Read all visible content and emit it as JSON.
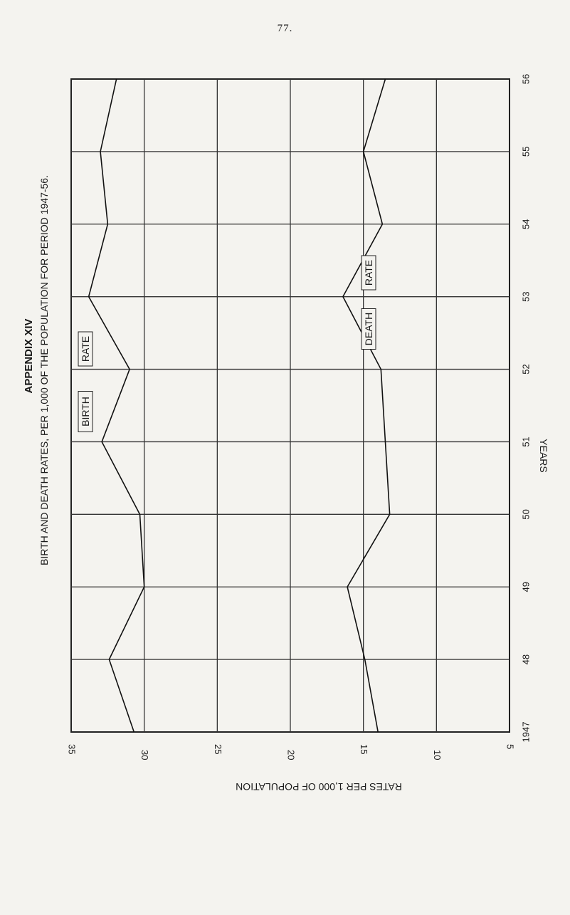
{
  "page_number": "77.",
  "appendix_heading": "APPENDIX XIV",
  "chart_data": {
    "type": "line",
    "title": "BIRTH AND DEATH RATES, PER 1,000 OF THE POPULATION FOR PERIOD 1947-56.",
    "xlabel": "YEARS",
    "ylabel": "RATES PER 1,000 OF POPULATION",
    "x": [
      "1947",
      "48",
      "49",
      "50",
      "51",
      "52",
      "53",
      "54",
      "55",
      "56"
    ],
    "ylim": [
      5,
      35
    ],
    "y_ticks": [
      35,
      30,
      25,
      20,
      15,
      10,
      5
    ],
    "y_tick_labels": [
      "35",
      "30",
      "25",
      "20",
      "15",
      "10",
      "5"
    ],
    "series": [
      {
        "name": "BIRTH RATE",
        "values": [
          30.7,
          32.4,
          30.0,
          30.3,
          32.9,
          31.0,
          33.8,
          32.5,
          33.0,
          31.9
        ]
      },
      {
        "name": "DEATH RATE",
        "values": [
          14.0,
          14.9,
          16.1,
          13.2,
          13.5,
          13.8,
          16.4,
          13.7,
          15.0,
          13.5
        ]
      }
    ],
    "grid": true
  }
}
